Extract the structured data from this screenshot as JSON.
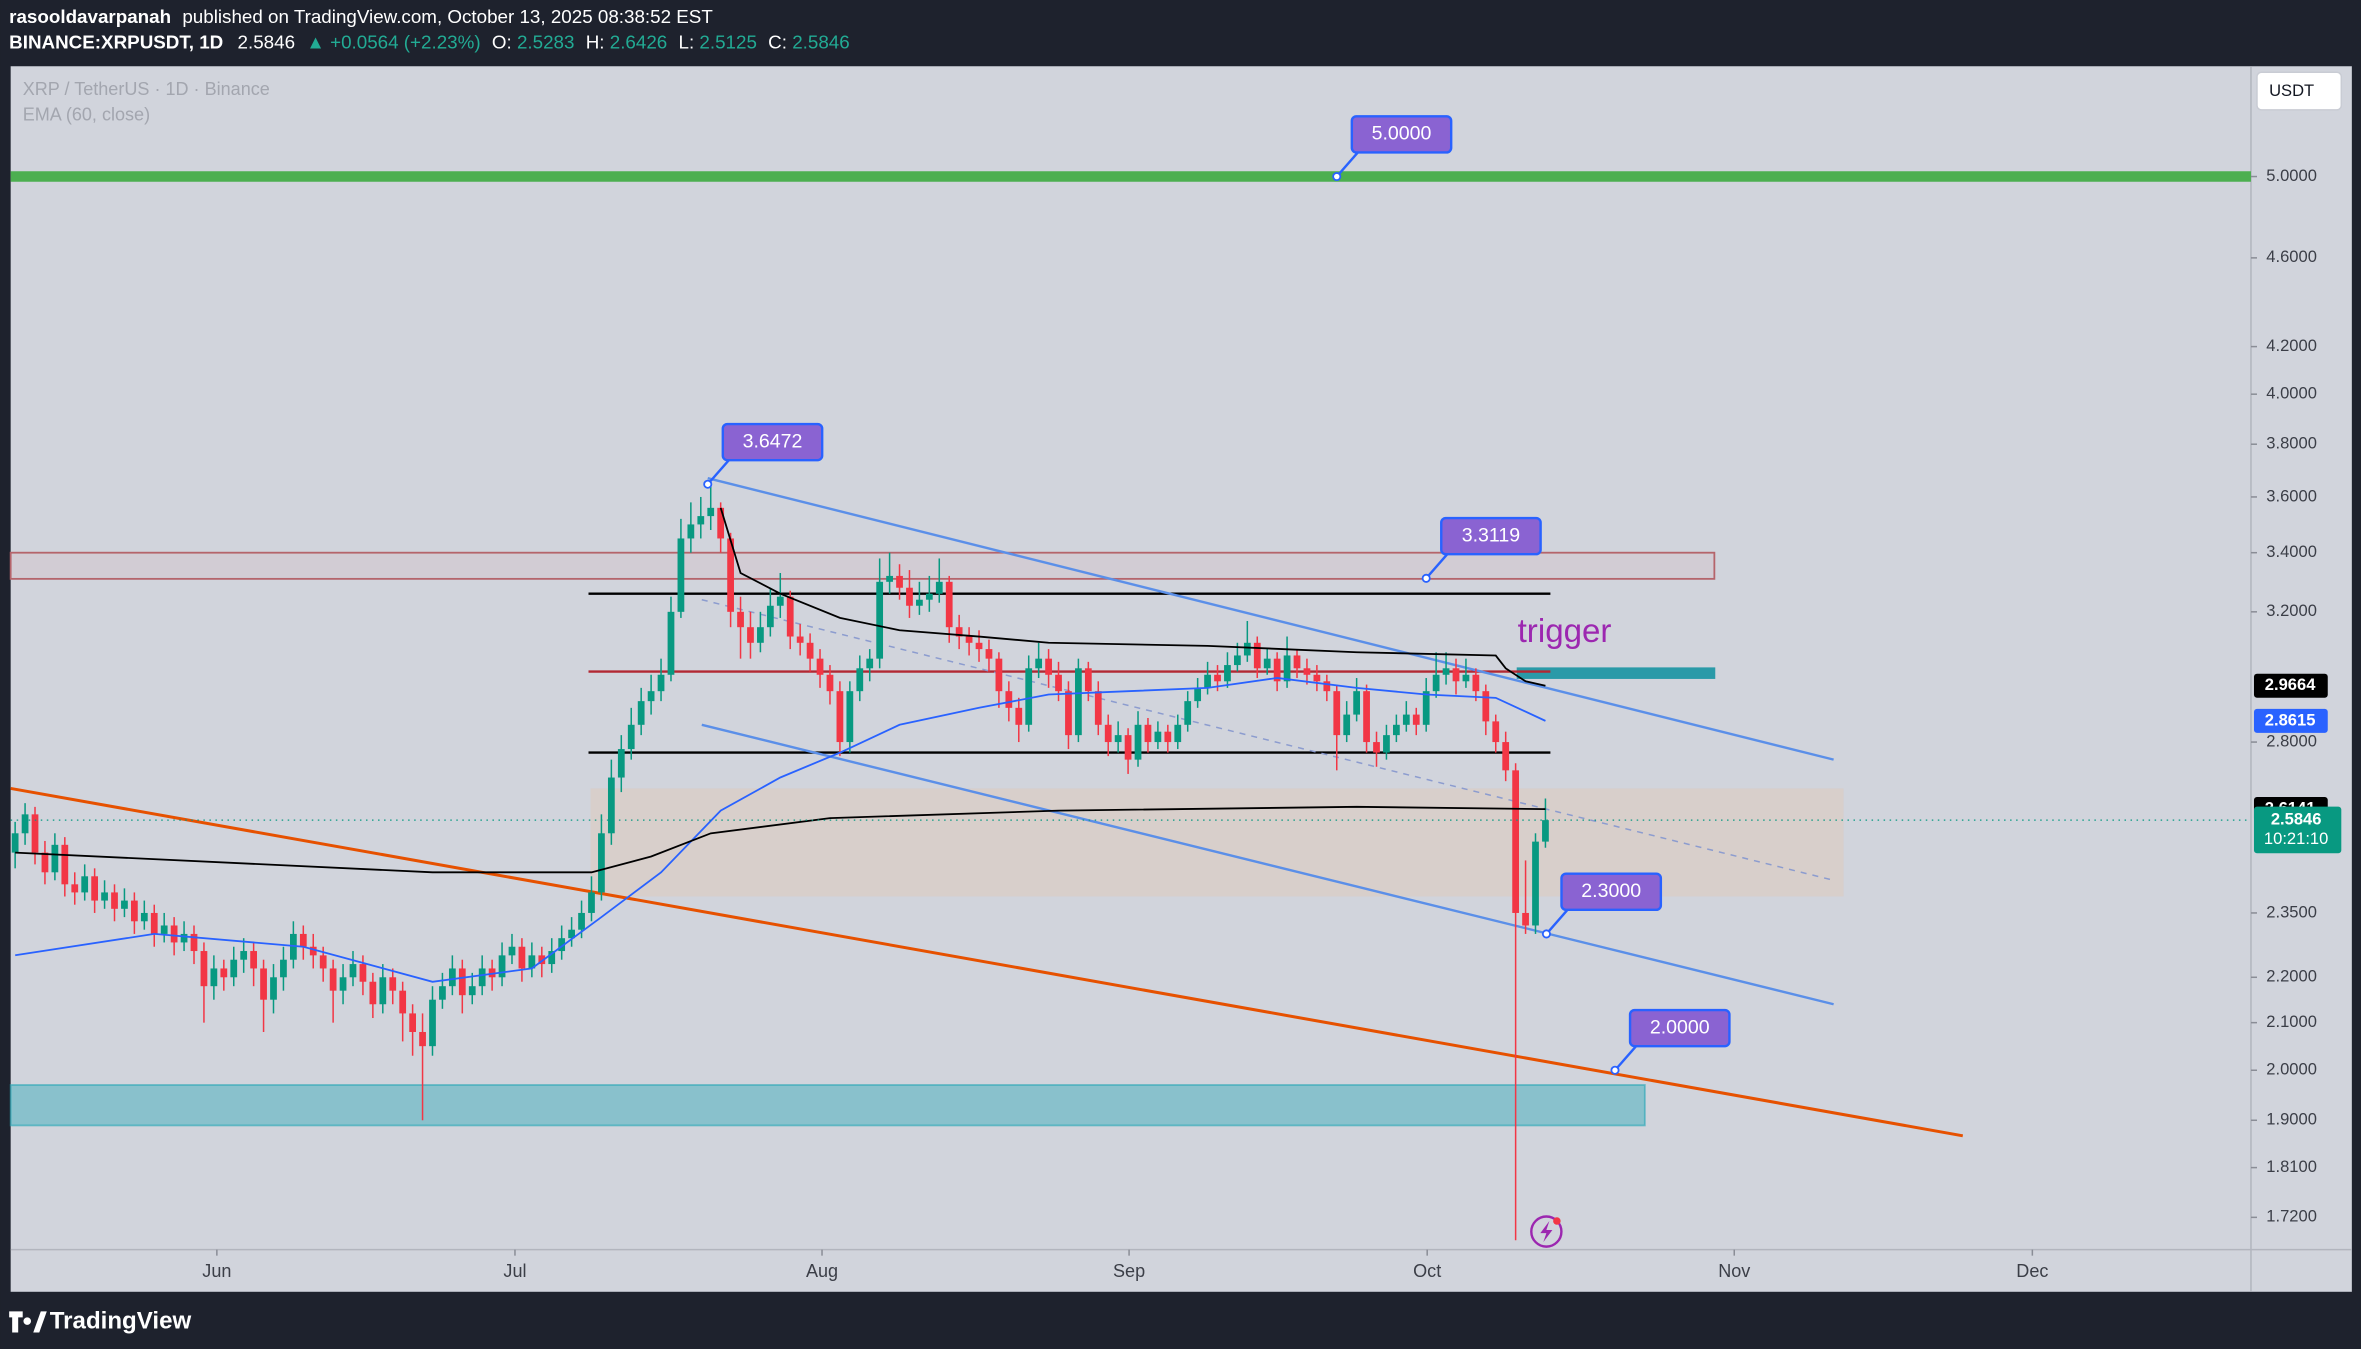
{
  "header": {
    "author": "rasooldavarpanah",
    "published": "published on TradingView.com, October 13, 2025 08:38:52 EST",
    "symbol": "BINANCE:XRPUSDT, 1D",
    "change": "▲ +0.0564 (+2.23%)",
    "ohlc_labels": [
      "O:",
      "H:",
      "L:",
      "C:"
    ]
  },
  "legend": {
    "symbol": "XRP / TetherUS · 1D · Binance"
  },
  "currency": "USDT",
  "countdown": "10:21:10",
  "brand": "TradingView",
  "chart_data": {
    "type": "candlestick",
    "log_scale": true,
    "grid": false,
    "up_color": "#089981",
    "down_color": "#f23645",
    "xlim": [
      -0.45,
      225
    ],
    "ylim": [
      1.664,
      5.59
    ],
    "xticks": [
      {
        "value": 20.3,
        "label": "Jun"
      },
      {
        "value": 50.3,
        "label": "Jul"
      },
      {
        "value": 81.2,
        "label": "Aug"
      },
      {
        "value": 112.1,
        "label": "Sep"
      },
      {
        "value": 142.1,
        "label": "Oct"
      },
      {
        "value": 173,
        "label": "Nov"
      },
      {
        "value": 203,
        "label": "Dec"
      }
    ],
    "yticks": [
      {
        "value": 5,
        "label": "5.0000"
      },
      {
        "value": 4.6,
        "label": "4.6000"
      },
      {
        "value": 4.2,
        "label": "4.2000"
      },
      {
        "value": 4,
        "label": "4.0000"
      },
      {
        "value": 3.8,
        "label": "3.8000"
      },
      {
        "value": 3.6,
        "label": "3.6000"
      },
      {
        "value": 3.4,
        "label": "3.4000"
      },
      {
        "value": 3.2,
        "label": "3.2000"
      },
      {
        "value": 2.8,
        "label": "2.8000"
      },
      {
        "value": 2.35,
        "label": "2.3500"
      },
      {
        "value": 2.2,
        "label": "2.2000"
      },
      {
        "value": 2.1,
        "label": "2.1000"
      },
      {
        "value": 2,
        "label": "2.0000"
      },
      {
        "value": 1.9,
        "label": "1.9000"
      },
      {
        "value": 1.81,
        "label": "1.8100"
      },
      {
        "value": 1.72,
        "label": "1.7200"
      }
    ],
    "candles": [
      [
        2.5,
        2.58,
        2.46,
        2.55
      ],
      [
        2.55,
        2.63,
        2.52,
        2.6
      ],
      [
        2.6,
        2.62,
        2.47,
        2.5
      ],
      [
        2.5,
        2.53,
        2.42,
        2.45
      ],
      [
        2.45,
        2.55,
        2.43,
        2.52
      ],
      [
        2.52,
        2.54,
        2.39,
        2.42
      ],
      [
        2.42,
        2.45,
        2.37,
        2.4
      ],
      [
        2.4,
        2.47,
        2.38,
        2.44
      ],
      [
        2.44,
        2.46,
        2.35,
        2.38
      ],
      [
        2.38,
        2.43,
        2.36,
        2.4
      ],
      [
        2.4,
        2.42,
        2.33,
        2.36
      ],
      [
        2.36,
        2.41,
        2.34,
        2.38
      ],
      [
        2.38,
        2.4,
        2.3,
        2.33
      ],
      [
        2.33,
        2.38,
        2.31,
        2.35
      ],
      [
        2.35,
        2.37,
        2.27,
        2.3
      ],
      [
        2.3,
        2.35,
        2.28,
        2.32
      ],
      [
        2.32,
        2.34,
        2.25,
        2.28
      ],
      [
        2.28,
        2.33,
        2.26,
        2.3
      ],
      [
        2.3,
        2.32,
        2.23,
        2.26
      ],
      [
        2.26,
        2.28,
        2.1,
        2.18
      ],
      [
        2.18,
        2.25,
        2.15,
        2.22
      ],
      [
        2.22,
        2.24,
        2.17,
        2.2
      ],
      [
        2.2,
        2.27,
        2.18,
        2.24
      ],
      [
        2.24,
        2.29,
        2.21,
        2.26
      ],
      [
        2.26,
        2.28,
        2.18,
        2.22
      ],
      [
        2.22,
        2.24,
        2.08,
        2.15
      ],
      [
        2.15,
        2.23,
        2.12,
        2.2
      ],
      [
        2.2,
        2.27,
        2.17,
        2.24
      ],
      [
        2.24,
        2.33,
        2.22,
        2.3
      ],
      [
        2.3,
        2.32,
        2.24,
        2.27
      ],
      [
        2.27,
        2.3,
        2.22,
        2.25
      ],
      [
        2.25,
        2.27,
        2.19,
        2.22
      ],
      [
        2.22,
        2.24,
        2.1,
        2.17
      ],
      [
        2.17,
        2.23,
        2.14,
        2.2
      ],
      [
        2.2,
        2.26,
        2.18,
        2.23
      ],
      [
        2.23,
        2.25,
        2.16,
        2.19
      ],
      [
        2.19,
        2.21,
        2.11,
        2.14
      ],
      [
        2.14,
        2.23,
        2.12,
        2.2
      ],
      [
        2.2,
        2.22,
        2.14,
        2.17
      ],
      [
        2.17,
        2.19,
        2.06,
        2.12
      ],
      [
        2.12,
        2.14,
        2.03,
        2.08
      ],
      [
        2.08,
        2.12,
        1.9,
        2.05
      ],
      [
        2.05,
        2.18,
        2.03,
        2.15
      ],
      [
        2.15,
        2.21,
        2.13,
        2.18
      ],
      [
        2.18,
        2.25,
        2.16,
        2.22
      ],
      [
        2.22,
        2.24,
        2.12,
        2.16
      ],
      [
        2.16,
        2.21,
        2.14,
        2.18
      ],
      [
        2.18,
        2.25,
        2.16,
        2.22
      ],
      [
        2.22,
        2.24,
        2.17,
        2.2
      ],
      [
        2.2,
        2.28,
        2.18,
        2.25
      ],
      [
        2.25,
        2.3,
        2.23,
        2.27
      ],
      [
        2.27,
        2.29,
        2.19,
        2.22
      ],
      [
        2.22,
        2.28,
        2.2,
        2.25
      ],
      [
        2.25,
        2.27,
        2.2,
        2.23
      ],
      [
        2.23,
        2.29,
        2.21,
        2.26
      ],
      [
        2.26,
        2.32,
        2.24,
        2.29
      ],
      [
        2.29,
        2.34,
        2.27,
        2.31
      ],
      [
        2.31,
        2.38,
        2.29,
        2.35
      ],
      [
        2.35,
        2.44,
        2.33,
        2.4
      ],
      [
        2.4,
        2.6,
        2.38,
        2.55
      ],
      [
        2.55,
        2.75,
        2.52,
        2.7
      ],
      [
        2.7,
        2.82,
        2.66,
        2.78
      ],
      [
        2.78,
        2.9,
        2.75,
        2.85
      ],
      [
        2.85,
        2.96,
        2.82,
        2.92
      ],
      [
        2.92,
        3.0,
        2.88,
        2.95
      ],
      [
        2.95,
        3.05,
        2.92,
        3.0
      ],
      [
        3.0,
        3.25,
        2.98,
        3.2
      ],
      [
        3.2,
        3.52,
        3.18,
        3.45
      ],
      [
        3.45,
        3.58,
        3.4,
        3.5
      ],
      [
        3.5,
        3.6,
        3.45,
        3.53
      ],
      [
        3.53,
        3.65,
        3.48,
        3.56
      ],
      [
        3.56,
        3.58,
        3.4,
        3.45
      ],
      [
        3.45,
        3.47,
        3.15,
        3.2
      ],
      [
        3.2,
        3.25,
        3.05,
        3.15
      ],
      [
        3.15,
        3.2,
        3.05,
        3.1
      ],
      [
        3.1,
        3.2,
        3.07,
        3.15
      ],
      [
        3.15,
        3.28,
        3.12,
        3.22
      ],
      [
        3.22,
        3.33,
        3.18,
        3.25
      ],
      [
        3.25,
        3.27,
        3.08,
        3.12
      ],
      [
        3.12,
        3.16,
        3.06,
        3.1
      ],
      [
        3.1,
        3.13,
        3.01,
        3.05
      ],
      [
        3.05,
        3.08,
        2.96,
        3.0
      ],
      [
        3.0,
        3.03,
        2.91,
        2.95
      ],
      [
        2.95,
        2.98,
        2.76,
        2.8
      ],
      [
        2.8,
        2.98,
        2.77,
        2.95
      ],
      [
        2.95,
        3.06,
        2.92,
        3.02
      ],
      [
        3.02,
        3.08,
        2.98,
        3.05
      ],
      [
        3.05,
        3.38,
        3.02,
        3.3
      ],
      [
        3.3,
        3.4,
        3.26,
        3.32
      ],
      [
        3.32,
        3.36,
        3.24,
        3.28
      ],
      [
        3.28,
        3.34,
        3.18,
        3.22
      ],
      [
        3.22,
        3.3,
        3.19,
        3.24
      ],
      [
        3.24,
        3.32,
        3.2,
        3.26
      ],
      [
        3.26,
        3.38,
        3.23,
        3.3
      ],
      [
        3.3,
        3.32,
        3.1,
        3.15
      ],
      [
        3.15,
        3.19,
        3.08,
        3.12
      ],
      [
        3.12,
        3.15,
        3.06,
        3.1
      ],
      [
        3.1,
        3.14,
        3.04,
        3.08
      ],
      [
        3.08,
        3.11,
        3.01,
        3.05
      ],
      [
        3.05,
        3.07,
        2.9,
        2.95
      ],
      [
        2.95,
        2.98,
        2.86,
        2.9
      ],
      [
        2.9,
        2.93,
        2.8,
        2.85
      ],
      [
        2.85,
        3.06,
        2.83,
        3.02
      ],
      [
        3.02,
        3.1,
        2.99,
        3.05
      ],
      [
        3.05,
        3.08,
        2.96,
        3.0
      ],
      [
        3.0,
        3.04,
        2.92,
        2.95
      ],
      [
        2.95,
        2.98,
        2.78,
        2.82
      ],
      [
        2.82,
        3.05,
        2.8,
        3.02
      ],
      [
        3.02,
        3.04,
        2.92,
        2.95
      ],
      [
        2.95,
        2.98,
        2.82,
        2.85
      ],
      [
        2.85,
        2.88,
        2.76,
        2.8
      ],
      [
        2.8,
        2.86,
        2.77,
        2.82
      ],
      [
        2.82,
        2.84,
        2.71,
        2.75
      ],
      [
        2.75,
        2.89,
        2.73,
        2.85
      ],
      [
        2.85,
        2.87,
        2.77,
        2.8
      ],
      [
        2.8,
        2.86,
        2.78,
        2.83
      ],
      [
        2.83,
        2.85,
        2.77,
        2.8
      ],
      [
        2.8,
        2.88,
        2.78,
        2.85
      ],
      [
        2.85,
        2.95,
        2.83,
        2.92
      ],
      [
        2.92,
        2.99,
        2.9,
        2.96
      ],
      [
        2.96,
        3.04,
        2.94,
        3.0
      ],
      [
        3.0,
        3.03,
        2.95,
        2.98
      ],
      [
        2.98,
        3.07,
        2.96,
        3.03
      ],
      [
        3.03,
        3.1,
        3.01,
        3.06
      ],
      [
        3.06,
        3.17,
        3.04,
        3.1
      ],
      [
        3.1,
        3.12,
        2.99,
        3.02
      ],
      [
        3.02,
        3.08,
        3.0,
        3.05
      ],
      [
        3.05,
        3.07,
        2.95,
        2.98
      ],
      [
        2.98,
        3.12,
        2.96,
        3.06
      ],
      [
        3.06,
        3.08,
        2.99,
        3.02
      ],
      [
        3.02,
        3.05,
        2.97,
        3.0
      ],
      [
        3.0,
        3.03,
        2.95,
        2.98
      ],
      [
        2.98,
        3.0,
        2.92,
        2.95
      ],
      [
        2.95,
        2.97,
        2.72,
        2.82
      ],
      [
        2.82,
        2.92,
        2.8,
        2.88
      ],
      [
        2.88,
        2.99,
        2.86,
        2.95
      ],
      [
        2.95,
        2.97,
        2.77,
        2.8
      ],
      [
        2.8,
        2.83,
        2.73,
        2.77
      ],
      [
        2.77,
        2.85,
        2.75,
        2.82
      ],
      [
        2.82,
        2.88,
        2.8,
        2.85
      ],
      [
        2.85,
        2.92,
        2.83,
        2.88
      ],
      [
        2.88,
        2.9,
        2.82,
        2.85
      ],
      [
        2.85,
        2.99,
        2.83,
        2.95
      ],
      [
        2.95,
        3.07,
        2.93,
        3.0
      ],
      [
        3.0,
        3.07,
        2.97,
        3.02
      ],
      [
        3.02,
        3.05,
        2.94,
        2.98
      ],
      [
        2.98,
        3.05,
        2.96,
        3.0
      ],
      [
        3.0,
        3.02,
        2.92,
        2.95
      ],
      [
        2.95,
        2.97,
        2.82,
        2.86
      ],
      [
        2.86,
        2.88,
        2.77,
        2.8
      ],
      [
        2.8,
        2.83,
        2.69,
        2.72
      ],
      [
        2.72,
        2.74,
        1.68,
        2.35
      ],
      [
        2.35,
        2.48,
        2.3,
        2.32
      ],
      [
        2.32,
        2.55,
        2.3,
        2.5283
      ],
      [
        2.5283,
        2.6426,
        2.5125,
        2.5846
      ]
    ],
    "indicators": [
      {
        "name": "EMA (60, close)",
        "color": "#2962ff",
        "tag_color": "#2962ff",
        "x": [
          0,
          14,
          29,
          42,
          52,
          59,
          65,
          71,
          77,
          83,
          89,
          97,
          104,
          112,
          120,
          127,
          135,
          142,
          149,
          154
        ],
        "values": [
          2.25,
          2.3,
          2.27,
          2.19,
          2.22,
          2.34,
          2.45,
          2.61,
          2.7,
          2.77,
          2.85,
          2.9,
          2.94,
          2.95,
          2.96,
          2.99,
          2.96,
          2.94,
          2.93,
          2.8615
        ]
      },
      {
        "color": "#000000",
        "tag_color": "#000000",
        "x": [
          71,
          73,
          77,
          83,
          89,
          97,
          104,
          120,
          135,
          149,
          150,
          152,
          154
        ],
        "values": [
          3.56,
          3.33,
          3.26,
          3.18,
          3.14,
          3.12,
          3.1,
          3.09,
          3.07,
          3.06,
          3.02,
          2.98,
          2.9664
        ]
      },
      {
        "color": "#000000",
        "tag_color": "#000000",
        "x": [
          0,
          42,
          58,
          64,
          70,
          82,
          105,
          135,
          154
        ],
        "values": [
          2.5,
          2.45,
          2.45,
          2.49,
          2.55,
          2.59,
          2.61,
          2.62,
          2.6141
        ]
      }
    ],
    "levels": [
      {
        "price": 5.0,
        "from": -0.45,
        "to": 225,
        "color": "#4caf50",
        "width": 7
      },
      {
        "price": 3.26,
        "from": 57.7,
        "to": 154.5,
        "color": "#000000",
        "width": 1.6
      },
      {
        "price": 3.01,
        "from": 57.7,
        "to": 154.5,
        "color": "#b22833",
        "width": 1.6
      },
      {
        "price": 2.77,
        "from": 57.7,
        "to": 154.5,
        "color": "#000000",
        "width": 1.6
      }
    ],
    "zones": [
      {
        "top": 3.4,
        "bottom": 3.31,
        "from": -0.45,
        "to": 171,
        "fill": "rgba(242,54,69,0.05)",
        "stroke": "#b5646b"
      },
      {
        "top": 2.67,
        "bottom": 2.39,
        "from": 57.9,
        "to": 184,
        "fill": "rgba(255,183,120,0.16)",
        "stroke": "none"
      },
      {
        "top": 1.97,
        "bottom": 1.89,
        "from": -0.45,
        "to": 164,
        "fill": "rgba(38,166,182,0.42)",
        "stroke": "rgba(38,166,182,0.6)"
      },
      {
        "top": 3.02,
        "bottom": 2.99,
        "from": 151.2,
        "to": 171,
        "fill": "#2a9aa8",
        "stroke": "#2a9aa8"
      }
    ],
    "trendlines": [
      {
        "from": [
          69.7,
          3.67
        ],
        "to": [
          183,
          2.75
        ],
        "color": "#5b8fe8",
        "width": 1.6,
        "dashed": false
      },
      {
        "from": [
          69.1,
          2.85
        ],
        "to": [
          183,
          2.14
        ],
        "color": "#5b8fe8",
        "width": 1.6,
        "dashed": false
      },
      {
        "from": [
          -0.45,
          2.67
        ],
        "to": [
          196,
          1.87
        ],
        "color": "#e65100",
        "width": 2,
        "dashed": false
      },
      {
        "from": [
          69.1,
          3.24
        ],
        "to": [
          183,
          2.43
        ],
        "color": "#8c9ccf",
        "width": 1,
        "dashed": true
      }
    ],
    "callouts": [
      {
        "x": 133,
        "value": 5,
        "label": "5.0000"
      },
      {
        "x": 69.7,
        "value": 3.6472,
        "label": "3.6472"
      },
      {
        "x": 142,
        "value": 3.3119,
        "label": "3.3119"
      },
      {
        "x": 154.1,
        "value": 2.3,
        "label": "2.3000"
      },
      {
        "x": 161,
        "value": 2,
        "label": "2.0000"
      }
    ],
    "note": {
      "text": "trigger",
      "x": 151.2,
      "price": 3.13,
      "color": "#9c27b0"
    }
  }
}
